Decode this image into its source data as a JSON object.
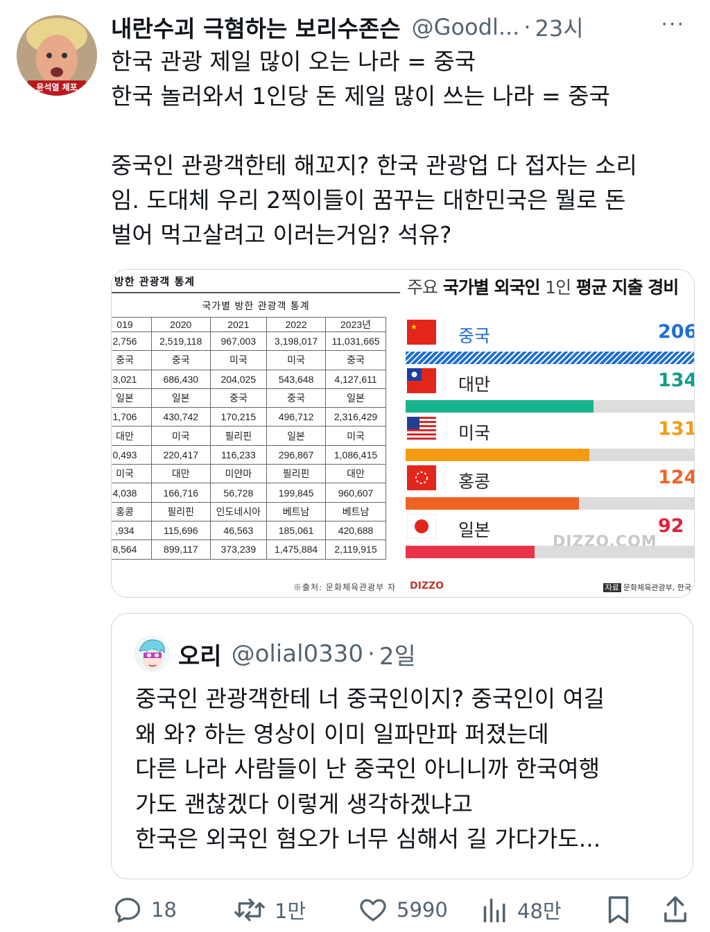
{
  "tweet": {
    "avatar_badge": "윤석열 체포",
    "display_name": "내란수괴 극혐하는 보리수존슨",
    "handle": "@Goodl...",
    "time": "23시",
    "more": "···",
    "lines": [
      "한국 관광 제일 많이 오는 나라 = 중국",
      "한국 놀러와서 1인당 돈 제일 많이 쓰는 나라 = 중국",
      "",
      "중국인 관광객한테 해꼬지? 한국 관광업 다 접자는 소리",
      "임. 도대체 우리 2찍이들이 꿈꾸는 대한민국은 뭘로 돈",
      "벌어 먹고살려고 이러는거임? 석유?"
    ]
  },
  "media_table": {
    "title": "방한 관광객 통계",
    "subtitle": "국가별 방한 관광객 통계",
    "rows": [
      [
        "019",
        "2020",
        "2021",
        "2022",
        "2023년"
      ],
      [
        "2,756",
        "2,519,118",
        "967,003",
        "3,198,017",
        "11,031,665"
      ],
      [
        "중국",
        "중국",
        "미국",
        "미국",
        "중국"
      ],
      [
        "3,021",
        "686,430",
        "204,025",
        "543,648",
        "4,127,611"
      ],
      [
        "일본",
        "일본",
        "중국",
        "중국",
        "일본"
      ],
      [
        "1,706",
        "430,742",
        "170,215",
        "496,712",
        "2,316,429"
      ],
      [
        "대만",
        "미국",
        "필리핀",
        "일본",
        "미국"
      ],
      [
        "0,493",
        "220,417",
        "116,233",
        "296,867",
        "1,086,415"
      ],
      [
        "미국",
        "대만",
        "미얀마",
        "필리핀",
        "대만"
      ],
      [
        "4,038",
        "166,716",
        "56,728",
        "199,845",
        "960,607"
      ],
      [
        "홍콩",
        "필리핀",
        "인도네시아",
        "베트남",
        "베트남"
      ],
      [
        ",934",
        "115,696",
        "46,563",
        "185,061",
        "420,688"
      ],
      [
        "8,564",
        "899,117",
        "373,239",
        "1,475,884",
        "2,119,915"
      ]
    ],
    "source": "※출처: 문화체육관광부 자"
  },
  "chart_data": {
    "type": "bar",
    "title_prefix": "주요",
    "title_bold": "국가별 외국인",
    "title_mid": "1인",
    "title_end": "평균 지출 경비",
    "categories": [
      "중국",
      "대만",
      "미국",
      "홍콩",
      "일본"
    ],
    "value_labels": [
      "206",
      "134",
      "131",
      "124",
      "92"
    ],
    "values": [
      206,
      134,
      131,
      124,
      92
    ],
    "colors": [
      "#1f6fd1",
      "#18b48c",
      "#f39c12",
      "#f06423",
      "#e8334a"
    ],
    "label_colors": [
      "#1f6fd1",
      "#0f9e86",
      "#f39c12",
      "#f06423",
      "#e01f3d"
    ],
    "name_colors": [
      "#1f6fd1",
      "#222222",
      "#222222",
      "#222222",
      "#222222"
    ],
    "first_bar_pattern": "hatched",
    "watermark": "DIZZO.COM",
    "logo": "DIZZO",
    "source_tag": "자료",
    "source_text": "문화체육관광부, 한국"
  },
  "quote": {
    "display_name": "오리",
    "handle": "@olial0330",
    "time": "2일",
    "lines": [
      "중국인 관광객한테 너 중국인이지? 중국인이 여길",
      "왜 와? 하는 영상이 이미 일파만파 퍼졌는데",
      "다른 나라 사람들이 난 중국인 아니니까 한국여행",
      "가도 괜찮겠다 이렇게 생각하겠냐고",
      "한국은 외국인 혐오가 너무 심해서 길 가다가도..."
    ]
  },
  "actions": {
    "replies": "18",
    "retweets": "1만",
    "likes": "5990",
    "views": "48만"
  }
}
